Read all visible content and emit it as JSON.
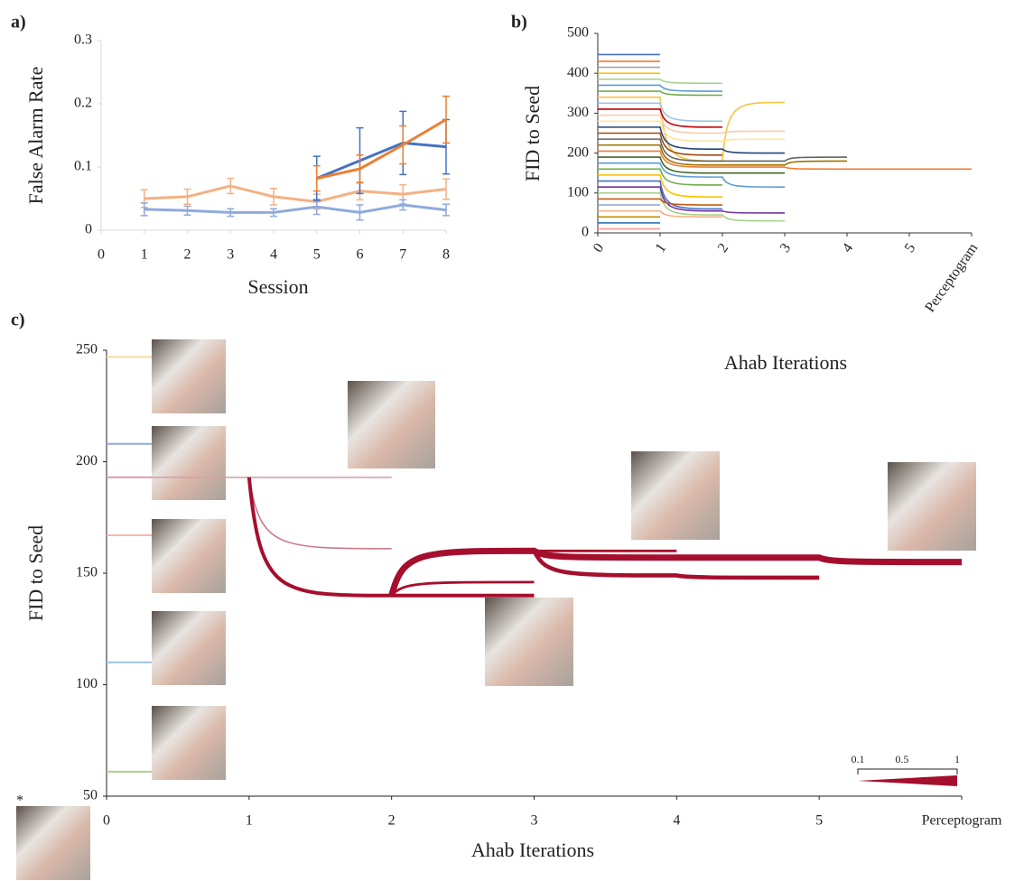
{
  "chart_data": [
    {
      "type": "line",
      "label": "a)",
      "ylabel": "False Alarm Rate",
      "xlabel": "Session",
      "x": [
        1,
        2,
        3,
        4,
        5,
        6,
        7,
        8
      ],
      "xlim": [
        0,
        8
      ],
      "xticks": [
        0,
        1,
        2,
        3,
        4,
        5,
        6,
        7,
        8
      ],
      "ylim": [
        0,
        0.3
      ],
      "yticks": [
        0,
        0.1,
        0.2,
        0.3
      ],
      "series": [
        {
          "color": "#f4b183",
          "values": [
            0.05,
            0.053,
            0.07,
            0.053,
            0.045,
            0.062,
            0.057,
            0.065
          ],
          "errors": [
            0.014,
            0.012,
            0.012,
            0.013,
            0.012,
            0.014,
            0.015,
            0.016
          ]
        },
        {
          "color": "#8faadc",
          "values": [
            0.033,
            0.031,
            0.028,
            0.028,
            0.037,
            0.028,
            0.04,
            0.032
          ],
          "errors": [
            0.01,
            0.007,
            0.006,
            0.006,
            0.012,
            0.012,
            0.008,
            0.009
          ]
        },
        {
          "color": "#4472c4",
          "values": [
            null,
            null,
            null,
            null,
            0.082,
            0.11,
            0.138,
            0.132
          ],
          "errors": [
            null,
            null,
            null,
            null,
            0.035,
            0.052,
            0.05,
            0.043
          ]
        },
        {
          "color": "#ed7d31",
          "values": [
            null,
            null,
            null,
            null,
            0.082,
            0.097,
            0.135,
            0.175
          ],
          "errors": [
            null,
            null,
            null,
            null,
            0.02,
            0.022,
            0.03,
            0.037
          ]
        }
      ]
    },
    {
      "type": "lineage",
      "label": "b)",
      "ylabel": "FID to Seed",
      "xlabel": "Ahab Iterations",
      "categories": [
        "0",
        "1",
        "2",
        "3",
        "4",
        "5",
        "Perceptogram"
      ],
      "ylim": [
        0,
        500
      ],
      "yticks": [
        0,
        100,
        200,
        300,
        400,
        500
      ],
      "series": [
        {
          "color": "#4472c4",
          "values": [
            447,
            447,
            null,
            null,
            null,
            null,
            null
          ]
        },
        {
          "color": "#ed7d31",
          "values": [
            430,
            430,
            null,
            null,
            null,
            null,
            null
          ]
        },
        {
          "color": "#a5a5a5",
          "values": [
            415,
            415,
            null,
            null,
            null,
            null,
            null
          ]
        },
        {
          "color": "#ffc000",
          "values": [
            400,
            400,
            null,
            null,
            null,
            null,
            null
          ]
        },
        {
          "color": "#a9d18e",
          "values": [
            385,
            385,
            375,
            null,
            null,
            null,
            null
          ]
        },
        {
          "color": "#5b9bd5",
          "values": [
            370,
            370,
            355,
            null,
            null,
            null,
            null
          ]
        },
        {
          "color": "#70ad47",
          "values": [
            355,
            355,
            345,
            null,
            null,
            null,
            null
          ]
        },
        {
          "color": "#f4c542",
          "values": [
            340,
            340,
            180,
            327,
            null,
            null,
            null
          ]
        },
        {
          "color": "#9dc3e6",
          "values": [
            325,
            325,
            280,
            null,
            null,
            null,
            null
          ]
        },
        {
          "color": "#c00000",
          "values": [
            310,
            310,
            265,
            null,
            null,
            null,
            null
          ]
        },
        {
          "color": "#f8cbad",
          "values": [
            295,
            295,
            250,
            255,
            null,
            null,
            null
          ]
        },
        {
          "color": "#ffe699",
          "values": [
            280,
            280,
            230,
            235,
            null,
            null,
            null
          ]
        },
        {
          "color": "#264478",
          "values": [
            265,
            265,
            210,
            200,
            null,
            null,
            null
          ]
        },
        {
          "color": "#9e480e",
          "values": [
            250,
            250,
            195,
            null,
            null,
            null,
            null
          ]
        },
        {
          "color": "#636363",
          "values": [
            235,
            235,
            180,
            180,
            190,
            null,
            null
          ]
        },
        {
          "color": "#997300",
          "values": [
            220,
            220,
            170,
            170,
            180,
            null,
            null
          ]
        },
        {
          "color": "#ed7d31",
          "values": [
            205,
            205,
            165,
            165,
            160,
            160,
            160
          ]
        },
        {
          "color": "#43682b",
          "values": [
            190,
            190,
            150,
            150,
            null,
            null,
            null
          ]
        },
        {
          "color": "#5b9bd5",
          "values": [
            175,
            175,
            140,
            115,
            null,
            null,
            null
          ]
        },
        {
          "color": "#70ad47",
          "values": [
            160,
            160,
            120,
            null,
            null,
            null,
            null
          ]
        },
        {
          "color": "#ffc000",
          "values": [
            145,
            145,
            90,
            null,
            null,
            null,
            null
          ]
        },
        {
          "color": "#4472c4",
          "values": [
            130,
            130,
            60,
            null,
            null,
            null,
            null
          ]
        },
        {
          "color": "#7030a0",
          "values": [
            115,
            115,
            55,
            50,
            null,
            null,
            null
          ]
        },
        {
          "color": "#a9d18e",
          "values": [
            100,
            100,
            45,
            30,
            null,
            null,
            null
          ]
        },
        {
          "color": "#c55a11",
          "values": [
            85,
            85,
            70,
            null,
            null,
            null,
            null
          ]
        },
        {
          "color": "#8faadc",
          "values": [
            70,
            70,
            null,
            null,
            null,
            null,
            null
          ]
        },
        {
          "color": "#f4b183",
          "values": [
            55,
            55,
            40,
            null,
            null,
            null,
            null
          ]
        },
        {
          "color": "#bf9000",
          "values": [
            40,
            40,
            null,
            null,
            null,
            null,
            null
          ]
        },
        {
          "color": "#2e75b6",
          "values": [
            25,
            25,
            null,
            null,
            null,
            null,
            null
          ]
        },
        {
          "color": "#ff9999",
          "values": [
            10,
            10,
            null,
            null,
            null,
            null,
            null
          ]
        }
      ]
    },
    {
      "type": "lineage",
      "label": "c)",
      "ylabel": "FID to Seed",
      "xlabel": "Ahab Iterations",
      "seed_mark": "*",
      "categories": [
        "0",
        "1",
        "2",
        "3",
        "4",
        "5",
        "Perceptogram"
      ],
      "ylim": [
        50,
        250
      ],
      "yticks": [
        50,
        100,
        150,
        200,
        250
      ],
      "markers": [
        {
          "value": 247,
          "color": "#f3d9a4"
        },
        {
          "value": 208,
          "color": "#8faadc"
        },
        {
          "value": 193,
          "color": "#d9a0aa"
        },
        {
          "value": 167,
          "color": "#f4b8a8"
        },
        {
          "value": 110,
          "color": "#9dc3e6"
        },
        {
          "value": 61,
          "color": "#a9d18e"
        }
      ],
      "width_scale": [
        0.1,
        0.5,
        1
      ],
      "series": [
        {
          "color": "#d9a0aa",
          "width": 0.1,
          "values": [
            193,
            193,
            193,
            null,
            null,
            null,
            null
          ]
        },
        {
          "color": "#c97a88",
          "width": 0.1,
          "values": [
            null,
            193,
            161,
            null,
            null,
            null,
            null
          ]
        },
        {
          "color": "#a50f2d",
          "width": 0.5,
          "values": [
            null,
            193,
            140,
            140,
            null,
            null,
            null
          ]
        },
        {
          "color": "#a50f2d",
          "width": 0.3,
          "values": [
            null,
            null,
            140,
            146,
            null,
            null,
            null
          ]
        },
        {
          "color": "#a50f2d",
          "width": 0.3,
          "values": [
            null,
            null,
            140,
            160,
            160,
            null,
            null
          ]
        },
        {
          "color": "#a50f2d",
          "width": 0.6,
          "values": [
            null,
            null,
            null,
            160,
            149,
            148,
            null
          ]
        },
        {
          "color": "#a50f2d",
          "width": 1,
          "values": [
            null,
            null,
            140,
            160,
            157,
            157,
            155
          ]
        }
      ]
    }
  ]
}
